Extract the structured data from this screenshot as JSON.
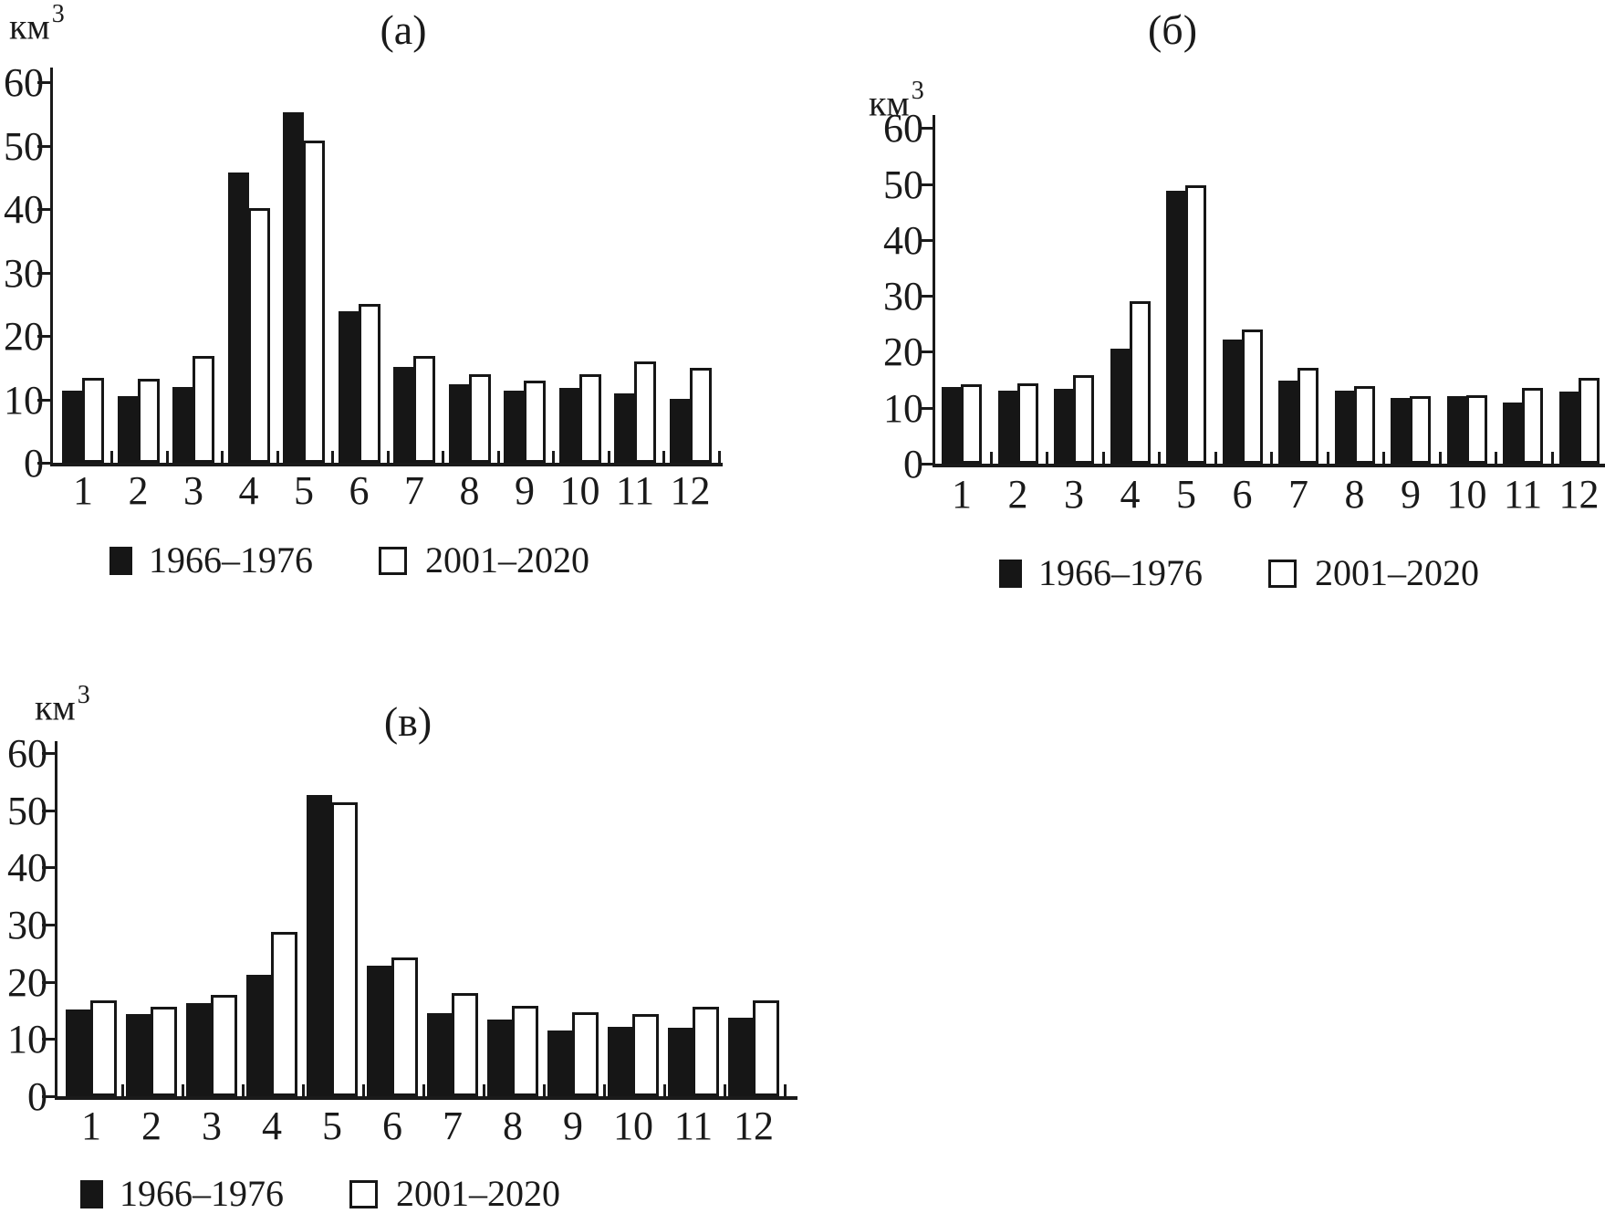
{
  "figure": {
    "unit_base": "км",
    "unit_exponent": "3",
    "colors": {
      "bar_filled": "#161616",
      "bar_open_fill": "#ffffff",
      "axis": "#1a1a1a",
      "background": "#ffffff"
    },
    "legend": {
      "series1_label": "1966–1976",
      "series2_label": "2001–2020",
      "series1_swatch": "filled-black-square",
      "series2_swatch": "open-white-square"
    }
  },
  "chart_data": [
    {
      "id": "a",
      "type": "bar",
      "title": "(а)",
      "ylabel": "км³",
      "xlabel": "",
      "categories": [
        "1",
        "2",
        "3",
        "4",
        "5",
        "6",
        "7",
        "8",
        "9",
        "10",
        "11",
        "12"
      ],
      "ylim": [
        0,
        60
      ],
      "yticks": [
        0,
        10,
        20,
        30,
        40,
        50,
        60
      ],
      "grid": false,
      "legend_position": "bottom",
      "series": [
        {
          "name": "1966–1976",
          "style": "filled",
          "values": [
            11.4,
            10.5,
            11.9,
            45.8,
            55.2,
            23.9,
            15.1,
            12.4,
            11.4,
            11.8,
            11.0,
            10.1
          ]
        },
        {
          "name": "2001–2020",
          "style": "open",
          "values": [
            13.4,
            13.2,
            16.9,
            40.2,
            50.8,
            25.0,
            16.9,
            14.0,
            13.0,
            13.9,
            16.0,
            15.0
          ]
        }
      ]
    },
    {
      "id": "b",
      "type": "bar",
      "title": "(б)",
      "ylabel": "км³",
      "xlabel": "",
      "categories": [
        "1",
        "2",
        "3",
        "4",
        "5",
        "6",
        "7",
        "8",
        "9",
        "10",
        "11",
        "12"
      ],
      "ylim": [
        0,
        60
      ],
      "yticks": [
        0,
        10,
        20,
        30,
        40,
        50,
        60
      ],
      "grid": false,
      "legend_position": "bottom",
      "series": [
        {
          "name": "1966–1976",
          "style": "filled",
          "values": [
            13.7,
            13.1,
            13.3,
            20.5,
            48.8,
            22.2,
            14.9,
            13.1,
            11.7,
            12.1,
            11.0,
            12.9
          ]
        },
        {
          "name": "2001–2020",
          "style": "open",
          "values": [
            14.2,
            14.4,
            15.9,
            29.0,
            49.8,
            23.9,
            17.2,
            13.8,
            12.1,
            12.3,
            13.5,
            15.4
          ]
        }
      ]
    },
    {
      "id": "v",
      "type": "bar",
      "title": "(в)",
      "ylabel": "км³",
      "xlabel": "",
      "categories": [
        "1",
        "2",
        "3",
        "4",
        "5",
        "6",
        "7",
        "8",
        "9",
        "10",
        "11",
        "12"
      ],
      "ylim": [
        0,
        60
      ],
      "yticks": [
        0,
        10,
        20,
        30,
        40,
        50,
        60
      ],
      "grid": false,
      "legend_position": "bottom",
      "series": [
        {
          "name": "1966–1976",
          "style": "filled",
          "values": [
            15.2,
            14.4,
            16.2,
            21.2,
            52.6,
            22.8,
            14.5,
            13.4,
            11.5,
            12.1,
            11.9,
            13.7
          ]
        },
        {
          "name": "2001–2020",
          "style": "open",
          "values": [
            16.8,
            15.7,
            17.7,
            28.7,
            51.3,
            24.2,
            18.1,
            15.8,
            14.6,
            14.4,
            15.6,
            16.8
          ]
        }
      ]
    }
  ]
}
